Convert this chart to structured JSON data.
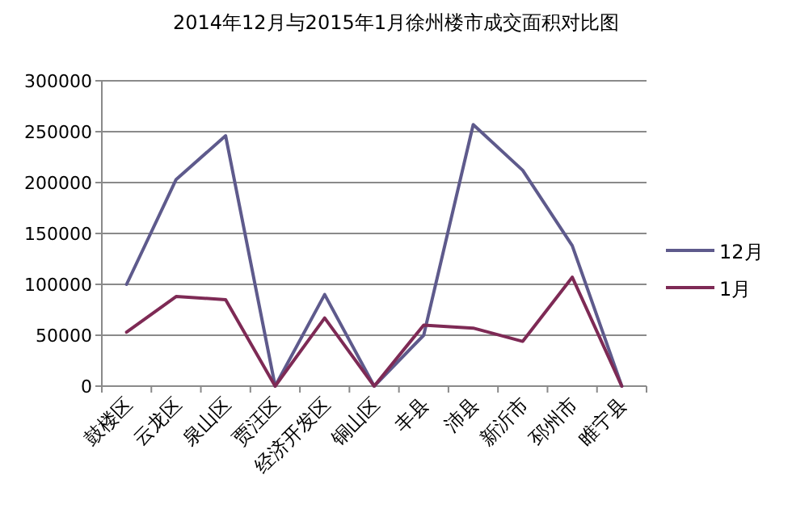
{
  "chart_data": {
    "type": "line",
    "title": "2014年12月与2015年1月徐州楼市成交面积对比图",
    "categories": [
      "鼓楼区",
      "云龙区",
      "泉山区",
      "贾汪区",
      "经济开发区",
      "铜山区",
      "丰县",
      "沛县",
      "新沂市",
      "邳州市",
      "睢宁县"
    ],
    "series": [
      {
        "name": "12月",
        "color": "#5e5a8c",
        "values": [
          100000,
          203000,
          246000,
          0,
          90000,
          0,
          50000,
          257000,
          212000,
          138000,
          0
        ]
      },
      {
        "name": "1月",
        "color": "#7e2a55",
        "values": [
          53000,
          88000,
          85000,
          0,
          67000,
          0,
          60000,
          57000,
          44000,
          107000,
          0
        ]
      }
    ],
    "ylim": [
      0,
      300000
    ],
    "yticks": [
      0,
      50000,
      100000,
      150000,
      200000,
      250000,
      300000
    ],
    "grid": "y",
    "legend": "right",
    "marker": "none",
    "line_style": "solid"
  }
}
